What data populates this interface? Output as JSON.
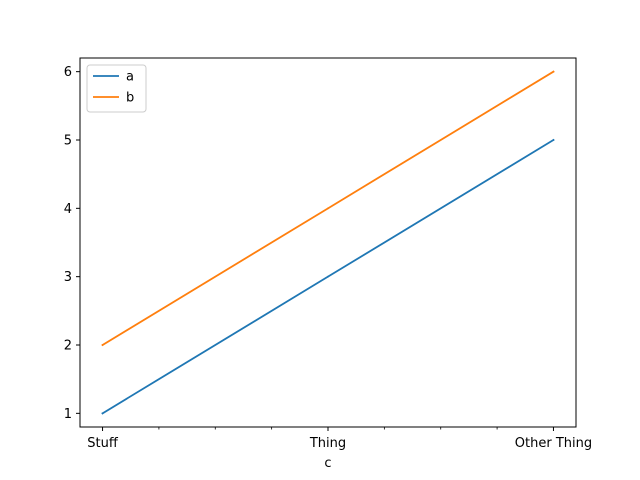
{
  "chart_data": {
    "type": "line",
    "categories": [
      "Stuff",
      "Thing",
      "Other Thing"
    ],
    "category_positions": [
      0,
      4,
      8
    ],
    "x_range": [
      -0.4,
      8.4
    ],
    "minor_tick_positions": [
      1,
      2,
      3,
      5,
      6,
      7
    ],
    "series": [
      {
        "name": "a",
        "color": "#1f77b4",
        "values": [
          1,
          3,
          5
        ]
      },
      {
        "name": "b",
        "color": "#ff7f0e",
        "values": [
          2,
          4,
          6
        ]
      }
    ],
    "xlabel": "c",
    "ylabel": "",
    "title": "",
    "ylim": [
      0.8,
      6.2
    ],
    "yticks": [
      1,
      2,
      3,
      4,
      5,
      6
    ],
    "legend": "top-left",
    "grid": false
  }
}
